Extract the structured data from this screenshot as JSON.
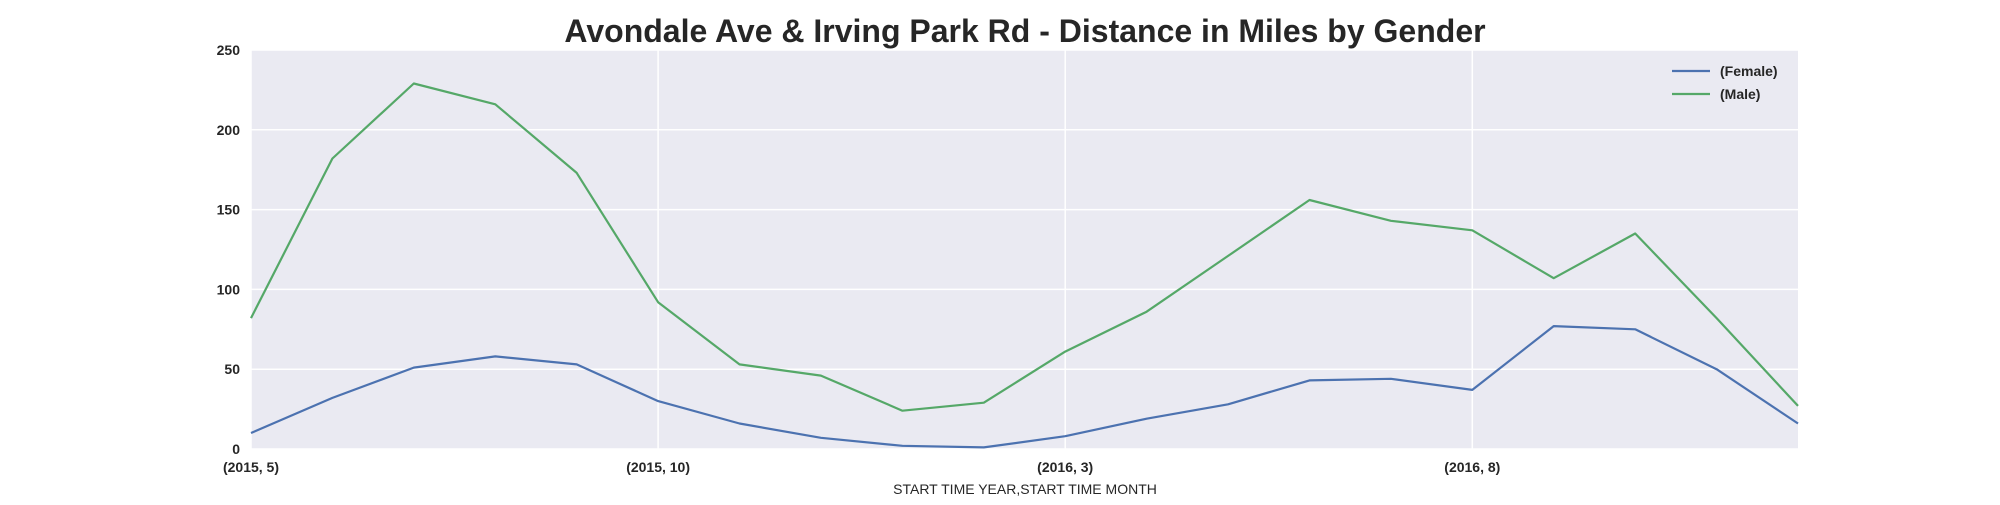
{
  "chart_data": {
    "type": "line",
    "title": "Avondale Ave & Irving Park Rd - Distance in Miles by Gender",
    "xlabel": "START TIME YEAR,START TIME MONTH",
    "ylabel": "",
    "x": [
      "(2015, 5)",
      "(2015, 6)",
      "(2015, 7)",
      "(2015, 8)",
      "(2015, 9)",
      "(2015, 10)",
      "(2015, 11)",
      "(2015, 12)",
      "(2016, 1)",
      "(2016, 2)",
      "(2016, 3)",
      "(2016, 4)",
      "(2016, 5)",
      "(2016, 6)",
      "(2016, 7)",
      "(2016, 8)",
      "(2016, 9)",
      "(2016, 10)",
      "(2016, 11)",
      "(2016, 12)"
    ],
    "xticks": [
      "(2015, 5)",
      "(2015, 10)",
      "(2016, 3)",
      "(2016, 8)"
    ],
    "ylim": [
      0,
      250
    ],
    "yticks": [
      0,
      50,
      100,
      150,
      200,
      250
    ],
    "grid": true,
    "legend_position": "top-right",
    "series": [
      {
        "name": "(Female)",
        "color": "#4c72b0",
        "values": [
          10,
          32,
          51,
          58,
          53,
          30,
          16,
          7,
          2,
          1,
          8,
          19,
          28,
          43,
          44,
          37,
          77,
          75,
          50,
          16
        ]
      },
      {
        "name": "(Male)",
        "color": "#55a868",
        "values": [
          82,
          182,
          229,
          216,
          173,
          92,
          53,
          46,
          24,
          29,
          61,
          86,
          121,
          156,
          143,
          137,
          107,
          135,
          82,
          27
        ]
      }
    ]
  },
  "style": {
    "plot_background": "#eaeaf2",
    "grid_color": "#ffffff",
    "text_color": "#262626"
  }
}
